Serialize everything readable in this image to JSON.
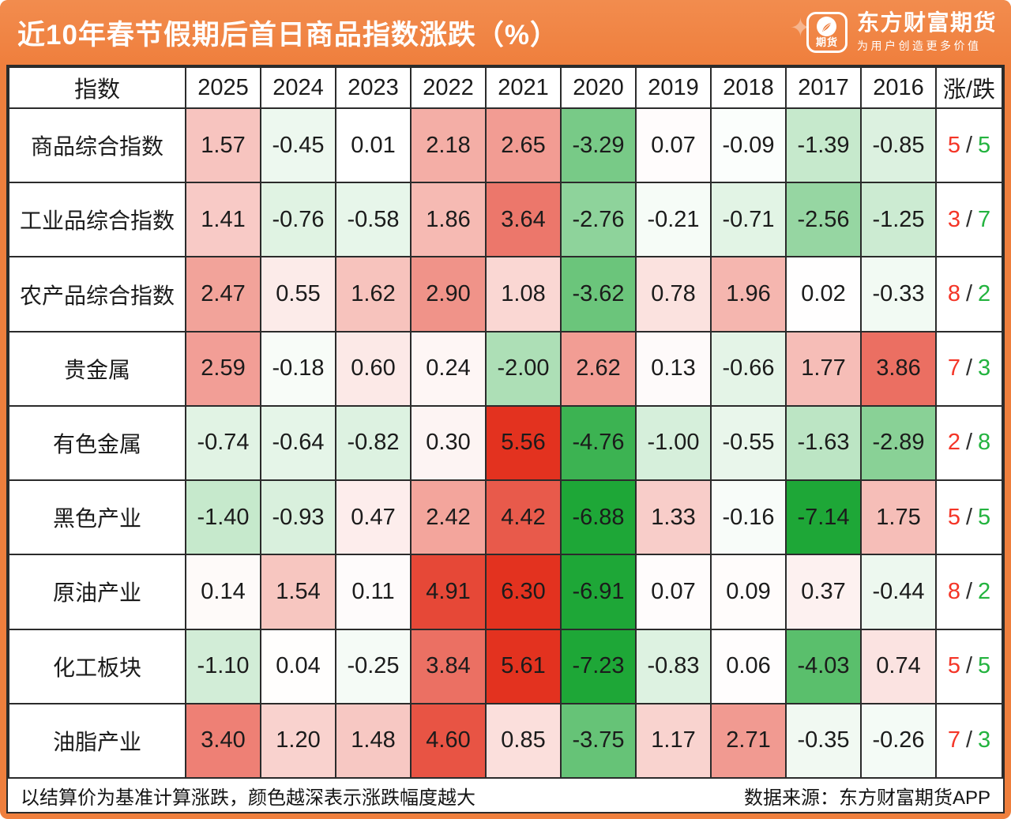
{
  "header": {
    "brand": {
      "badge_text": "期货",
      "name": "东方财富期货",
      "slogan": "为用户创造更多价值"
    }
  },
  "chart_data": {
    "type": "heatmap",
    "title": "近10年春节假期后首日商品指数涨跌（%）",
    "row_header_label": "指数",
    "updown_header_label": "涨/跌",
    "columns": [
      "2025",
      "2024",
      "2023",
      "2022",
      "2021",
      "2020",
      "2019",
      "2018",
      "2017",
      "2016"
    ],
    "rows": [
      {
        "name": "商品综合指数",
        "values": [
          1.57,
          -0.45,
          0.01,
          2.18,
          2.65,
          -3.29,
          0.07,
          -0.09,
          -1.39,
          -0.85
        ],
        "up": 5,
        "down": 5
      },
      {
        "name": "工业品综合指数",
        "values": [
          1.41,
          -0.76,
          -0.58,
          1.86,
          3.64,
          -2.76,
          -0.21,
          -0.71,
          -2.56,
          -1.25
        ],
        "up": 3,
        "down": 7
      },
      {
        "name": "农产品综合指数",
        "values": [
          2.47,
          0.55,
          1.62,
          2.9,
          1.08,
          -3.62,
          0.78,
          1.96,
          0.02,
          -0.33
        ],
        "up": 8,
        "down": 2
      },
      {
        "name": "贵金属",
        "values": [
          2.59,
          -0.18,
          0.6,
          0.24,
          -2.0,
          2.62,
          0.13,
          -0.66,
          1.77,
          3.86
        ],
        "up": 7,
        "down": 3
      },
      {
        "name": "有色金属",
        "values": [
          -0.74,
          -0.64,
          -0.82,
          0.3,
          5.56,
          -4.76,
          -1.0,
          -0.55,
          -1.63,
          -2.89
        ],
        "up": 2,
        "down": 8
      },
      {
        "name": "黑色产业",
        "values": [
          -1.4,
          -0.93,
          0.47,
          2.42,
          4.42,
          -6.88,
          1.33,
          -0.16,
          -7.14,
          1.75
        ],
        "up": 5,
        "down": 5
      },
      {
        "name": "原油产业",
        "values": [
          0.14,
          1.54,
          0.11,
          4.91,
          6.3,
          -6.91,
          0.07,
          0.09,
          0.37,
          -0.44
        ],
        "up": 8,
        "down": 2
      },
      {
        "name": "化工板块",
        "values": [
          -1.1,
          0.04,
          -0.25,
          3.84,
          5.61,
          -7.23,
          -0.83,
          0.06,
          -4.03,
          0.74
        ],
        "up": 5,
        "down": 5
      },
      {
        "name": "油脂产业",
        "values": [
          3.4,
          1.2,
          1.48,
          4.6,
          0.85,
          -3.75,
          1.17,
          2.71,
          -0.35,
          -0.26
        ],
        "up": 7,
        "down": 3
      }
    ],
    "value_precision": 2
  },
  "footer": {
    "note": "以结算价为基准计算涨跌，颜色越深表示涨跌幅度越大",
    "source": "数据来源：东方财富期货APP"
  },
  "theme": {
    "accent_orange": "#ef7f3d",
    "accent_orange_light": "#f28c4e",
    "grid_line": "#2b2b2b",
    "positive_cell_color": "#e3321f",
    "negative_cell_color": "#1ea737",
    "heatmap_max_abs": 5.5,
    "up_count_color": "#f43527",
    "down_count_color": "#23b33f"
  }
}
